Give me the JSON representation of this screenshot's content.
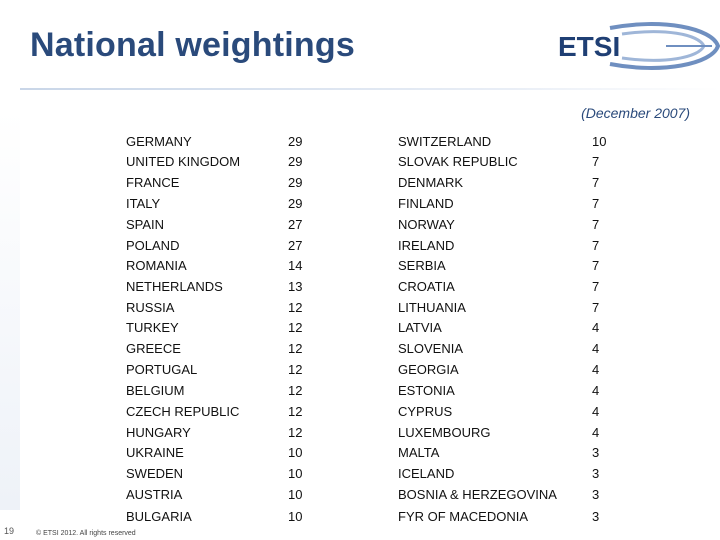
{
  "header": {
    "title": "National weightings",
    "logo_text": "ETSI"
  },
  "subtitle": "(December 2007)",
  "rows": [
    {
      "country1": "GERMANY",
      "weight1": "29",
      "country2": "SWITZERLAND",
      "weight2": "10"
    },
    {
      "country1": "UNITED KINGDOM",
      "weight1": "29",
      "country2": "SLOVAK REPUBLIC",
      "weight2": "7"
    },
    {
      "country1": "FRANCE",
      "weight1": "29",
      "country2": "DENMARK",
      "weight2": "7"
    },
    {
      "country1": "ITALY",
      "weight1": "29",
      "country2": "FINLAND",
      "weight2": "7"
    },
    {
      "country1": "SPAIN",
      "weight1": "27",
      "country2": "NORWAY",
      "weight2": "7"
    },
    {
      "country1": "POLAND",
      "weight1": "27",
      "country2": "IRELAND",
      "weight2": "7"
    },
    {
      "country1": "ROMANIA",
      "weight1": "14",
      "country2": "SERBIA",
      "weight2": "7"
    },
    {
      "country1": "NETHERLANDS",
      "weight1": "13",
      "country2": "CROATIA",
      "weight2": "7"
    },
    {
      "country1": "RUSSIA",
      "weight1": "12",
      "country2": "LITHUANIA",
      "weight2": "7"
    },
    {
      "country1": "TURKEY",
      "weight1": "12",
      "country2": "LATVIA",
      "weight2": "4"
    },
    {
      "country1": "GREECE",
      "weight1": "12",
      "country2": "SLOVENIA",
      "weight2": "4"
    },
    {
      "country1": "PORTUGAL",
      "weight1": "12",
      "country2": "GEORGIA",
      "weight2": "4"
    },
    {
      "country1": "BELGIUM",
      "weight1": "12",
      "country2": "ESTONIA",
      "weight2": "4"
    },
    {
      "country1": "CZECH REPUBLIC",
      "weight1": "12",
      "country2": "CYPRUS",
      "weight2": "4"
    },
    {
      "country1": "HUNGARY",
      "weight1": "12",
      "country2": "LUXEMBOURG",
      "weight2": "4"
    },
    {
      "country1": "UKRAINE",
      "weight1": "10",
      "country2": "MALTA",
      "weight2": "3"
    },
    {
      "country1": "SWEDEN",
      "weight1": "10",
      "country2": "ICELAND",
      "weight2": "3"
    },
    {
      "country1": "AUSTRIA",
      "weight1": "10",
      "country2": "BOSNIA & HERZEGOVINA",
      "weight2": "3"
    },
    {
      "country1": "BULGARIA",
      "weight1": "10",
      "country2": "FYR OF MACEDONIA",
      "weight2": "3"
    }
  ],
  "footer": {
    "copyright": "© ETSI 2012. All rights reserved",
    "page": "19"
  },
  "colors": {
    "title": "#2a4a7b",
    "logo": "#1f3f74",
    "text": "#111111"
  }
}
